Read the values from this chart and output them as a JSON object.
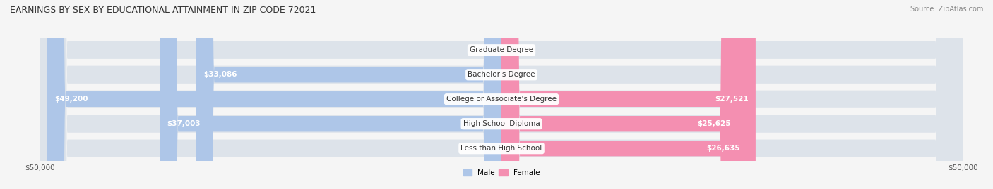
{
  "title": "EARNINGS BY SEX BY EDUCATIONAL ATTAINMENT IN ZIP CODE 72021",
  "source": "Source: ZipAtlas.com",
  "categories": [
    "Less than High School",
    "High School Diploma",
    "College or Associate's Degree",
    "Bachelor's Degree",
    "Graduate Degree"
  ],
  "male_values": [
    0,
    37003,
    49200,
    33086,
    0
  ],
  "female_values": [
    26635,
    25625,
    27521,
    0,
    0
  ],
  "male_color": "#8aadd4",
  "female_color": "#f06292",
  "male_label_color": "#8aadd4",
  "female_label_color": "#f06292",
  "male_bar_color": "#aec6e8",
  "female_bar_color": "#f48fb1",
  "male_legend_color": "#8aadd4",
  "female_legend_color": "#f06292",
  "max_value": 50000,
  "bg_color": "#f5f5f5",
  "bar_bg_color": "#e8e8e8",
  "xlabel_left": "$50,000",
  "xlabel_right": "$50,000",
  "title_fontsize": 9,
  "source_fontsize": 7,
  "label_fontsize": 7.5,
  "category_fontsize": 7.5
}
